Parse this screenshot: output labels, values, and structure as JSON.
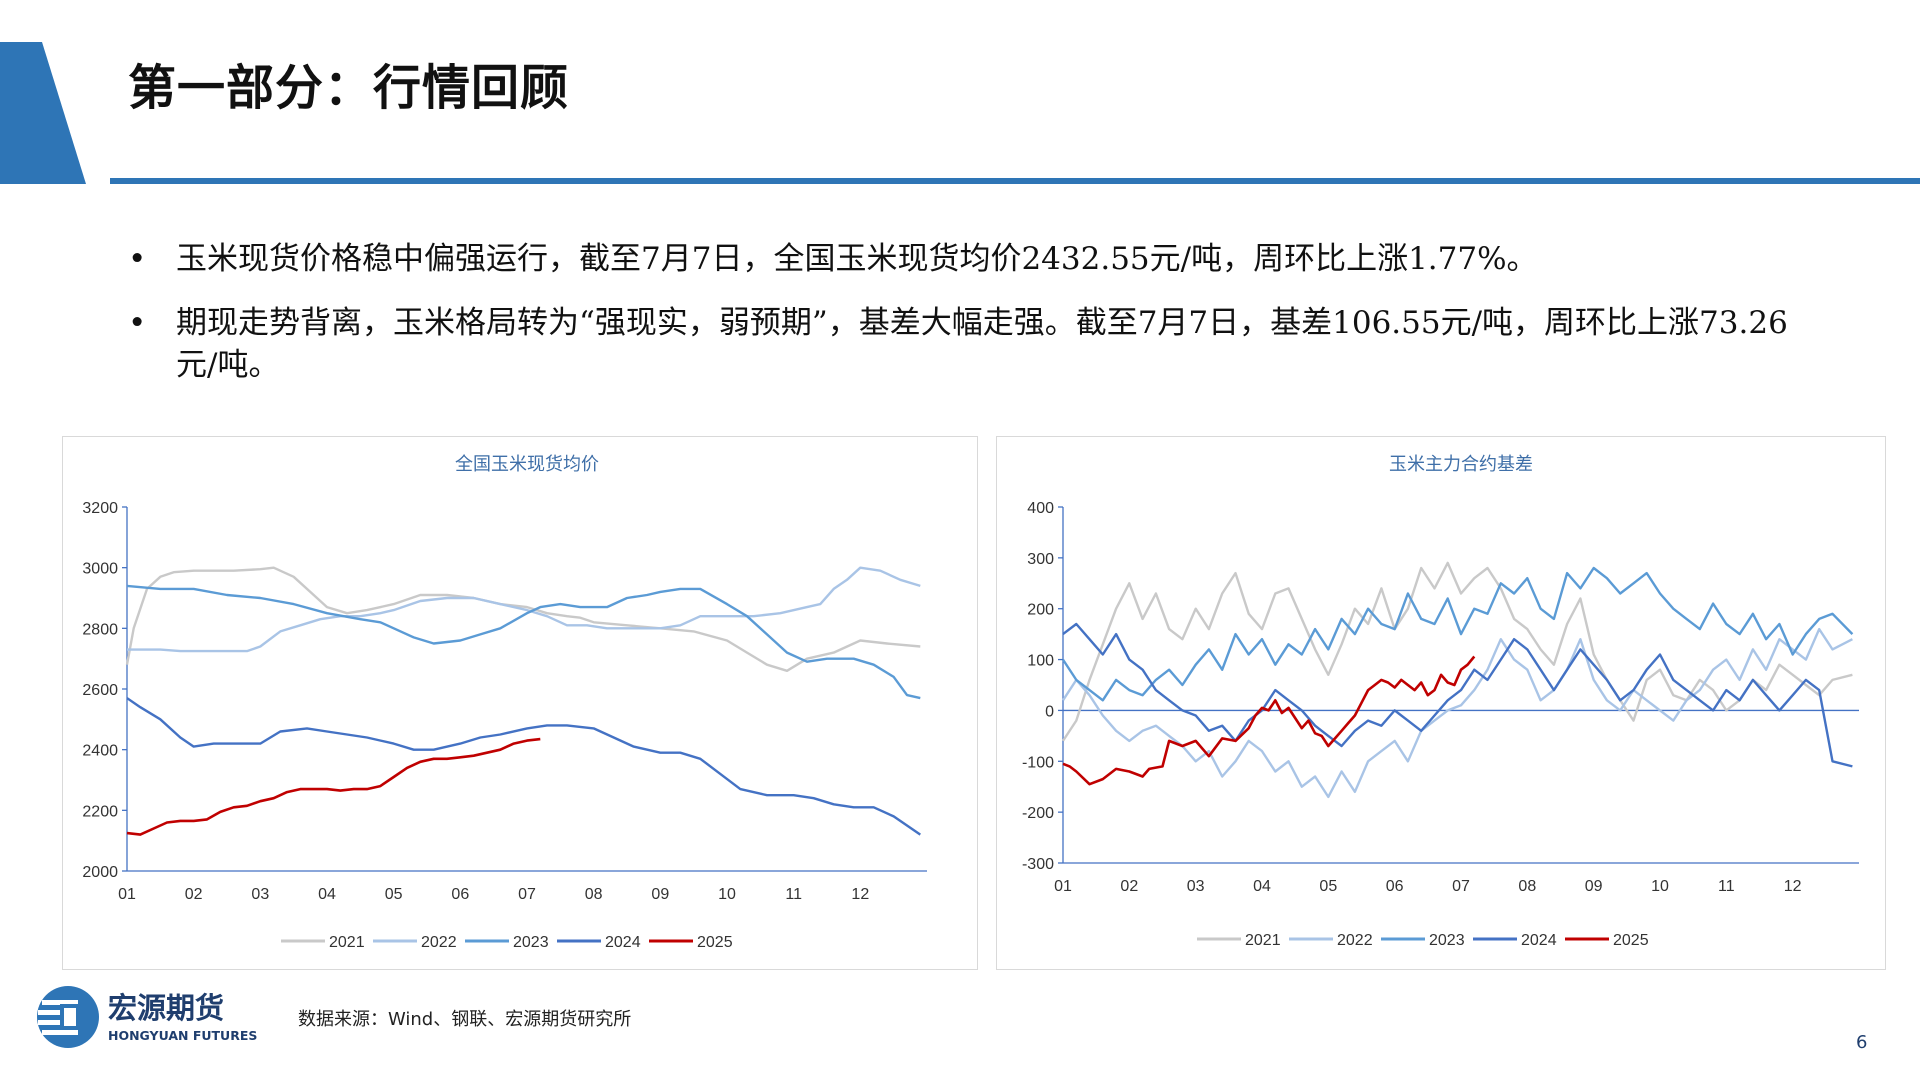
{
  "page": {
    "title": "第一部分：行情回顾",
    "page_number": "6",
    "source": "数据来源：Wind、钢联、宏源期货研究所"
  },
  "logo": {
    "name_cn": "宏源期货",
    "name_en": "HONGYUAN FUTURES"
  },
  "bullets": [
    "玉米现货价格稳中偏强运行，截至7月7日，全国玉米现货均价2432.55元/吨，周环比上涨1.77%。",
    "期现走势背离，玉米格局转为“强现实，弱预期”，基差大幅走强。截至7月7日，基差106.55元/吨，周环比上涨73.26元/吨。"
  ],
  "colors": {
    "accent": "#2e75b6",
    "s2021": "#c9c9c9",
    "s2022": "#a9c4e6",
    "s2023": "#5b9bd5",
    "s2024": "#4472c4",
    "s2025": "#c00000"
  },
  "chart_data": [
    {
      "type": "line",
      "title": "全国玉米现货均价",
      "x_ticks": [
        "01",
        "02",
        "03",
        "04",
        "05",
        "06",
        "07",
        "08",
        "09",
        "10",
        "11",
        "12"
      ],
      "ylim": [
        2000,
        3200
      ],
      "y_ticks": [
        2000,
        2200,
        2400,
        2600,
        2800,
        3000,
        3200
      ],
      "legend": "bottom",
      "series": [
        {
          "name": "2021",
          "x": [
            1.0,
            1.1,
            1.3,
            1.5,
            1.7,
            2.0,
            2.3,
            2.6,
            3.0,
            3.2,
            3.5,
            3.8,
            4.0,
            4.3,
            4.6,
            5.0,
            5.4,
            5.8,
            6.2,
            6.6,
            7.0,
            7.3,
            7.6,
            7.8,
            8.0,
            8.5,
            9.0,
            9.5,
            10.0,
            10.3,
            10.6,
            10.9,
            11.2,
            11.6,
            12.0,
            12.4,
            12.9
          ],
          "values": [
            2680,
            2800,
            2930,
            2970,
            2985,
            2990,
            2990,
            2990,
            2995,
            3000,
            2970,
            2910,
            2870,
            2850,
            2860,
            2880,
            2910,
            2910,
            2900,
            2880,
            2870,
            2850,
            2840,
            2835,
            2820,
            2810,
            2800,
            2790,
            2760,
            2720,
            2680,
            2660,
            2700,
            2720,
            2760,
            2750,
            2740
          ]
        },
        {
          "name": "2022",
          "x": [
            1.0,
            1.2,
            1.5,
            1.8,
            2.0,
            2.4,
            2.8,
            3.0,
            3.3,
            3.6,
            3.9,
            4.2,
            4.5,
            4.8,
            5.0,
            5.4,
            5.8,
            6.2,
            6.6,
            7.0,
            7.3,
            7.6,
            7.9,
            8.2,
            8.6,
            9.0,
            9.3,
            9.6,
            10.0,
            10.4,
            10.8,
            11.2,
            11.4,
            11.6,
            11.8,
            12.0,
            12.3,
            12.6,
            12.9
          ],
          "values": [
            2730,
            2730,
            2730,
            2725,
            2725,
            2725,
            2725,
            2740,
            2790,
            2810,
            2830,
            2840,
            2840,
            2850,
            2860,
            2890,
            2900,
            2900,
            2880,
            2860,
            2840,
            2810,
            2810,
            2800,
            2800,
            2800,
            2810,
            2840,
            2840,
            2840,
            2850,
            2870,
            2880,
            2930,
            2960,
            3000,
            2990,
            2960,
            2940
          ]
        },
        {
          "name": "2023",
          "x": [
            1.0,
            1.5,
            2.0,
            2.5,
            3.0,
            3.5,
            4.0,
            4.5,
            4.8,
            5.0,
            5.3,
            5.6,
            6.0,
            6.3,
            6.6,
            7.0,
            7.2,
            7.5,
            7.8,
            8.2,
            8.5,
            8.8,
            9.0,
            9.3,
            9.6,
            10.0,
            10.3,
            10.6,
            10.9,
            11.2,
            11.5,
            11.9,
            12.2,
            12.5,
            12.7,
            12.9
          ],
          "values": [
            2940,
            2930,
            2930,
            2910,
            2900,
            2880,
            2850,
            2830,
            2820,
            2800,
            2770,
            2750,
            2760,
            2780,
            2800,
            2850,
            2870,
            2880,
            2870,
            2870,
            2900,
            2910,
            2920,
            2930,
            2930,
            2880,
            2840,
            2780,
            2720,
            2690,
            2700,
            2700,
            2680,
            2640,
            2580,
            2570
          ]
        },
        {
          "name": "2024",
          "x": [
            1.0,
            1.2,
            1.5,
            1.8,
            2.0,
            2.3,
            2.7,
            3.0,
            3.3,
            3.7,
            4.0,
            4.3,
            4.6,
            5.0,
            5.3,
            5.6,
            6.0,
            6.3,
            6.6,
            7.0,
            7.3,
            7.6,
            8.0,
            8.3,
            8.6,
            9.0,
            9.3,
            9.6,
            9.9,
            10.2,
            10.6,
            11.0,
            11.3,
            11.6,
            11.9,
            12.2,
            12.5,
            12.9
          ],
          "values": [
            2570,
            2540,
            2500,
            2440,
            2410,
            2420,
            2420,
            2420,
            2460,
            2470,
            2460,
            2450,
            2440,
            2420,
            2400,
            2400,
            2420,
            2440,
            2450,
            2470,
            2480,
            2480,
            2470,
            2440,
            2410,
            2390,
            2390,
            2370,
            2320,
            2270,
            2250,
            2250,
            2240,
            2220,
            2210,
            2210,
            2180,
            2120
          ]
        },
        {
          "name": "2025",
          "x": [
            1.0,
            1.2,
            1.4,
            1.6,
            1.8,
            2.0,
            2.2,
            2.4,
            2.6,
            2.8,
            3.0,
            3.2,
            3.4,
            3.6,
            3.8,
            4.0,
            4.2,
            4.4,
            4.6,
            4.8,
            5.0,
            5.2,
            5.4,
            5.6,
            5.8,
            6.0,
            6.2,
            6.4,
            6.6,
            6.8,
            7.0,
            7.2
          ],
          "values": [
            2125,
            2120,
            2140,
            2160,
            2165,
            2165,
            2170,
            2195,
            2210,
            2215,
            2230,
            2240,
            2260,
            2270,
            2270,
            2270,
            2265,
            2270,
            2270,
            2280,
            2310,
            2340,
            2360,
            2370,
            2370,
            2375,
            2380,
            2390,
            2400,
            2420,
            2430,
            2435
          ]
        }
      ]
    },
    {
      "type": "line",
      "title": "玉米主力合约基差",
      "x_ticks": [
        "01",
        "02",
        "03",
        "04",
        "05",
        "06",
        "07",
        "08",
        "09",
        "10",
        "11",
        "12"
      ],
      "ylim": [
        -300,
        400
      ],
      "y_ticks": [
        -300,
        -200,
        -100,
        0,
        100,
        200,
        300,
        400
      ],
      "legend": "bottom",
      "series": [
        {
          "name": "2021",
          "x": [
            1.0,
            1.2,
            1.4,
            1.6,
            1.8,
            2.0,
            2.2,
            2.4,
            2.6,
            2.8,
            3.0,
            3.2,
            3.4,
            3.6,
            3.8,
            4.0,
            4.2,
            4.4,
            4.6,
            4.8,
            5.0,
            5.2,
            5.4,
            5.6,
            5.8,
            6.0,
            6.2,
            6.4,
            6.6,
            6.8,
            7.0,
            7.2,
            7.4,
            7.6,
            7.8,
            8.0,
            8.2,
            8.4,
            8.6,
            8.8,
            9.0,
            9.2,
            9.4,
            9.6,
            9.8,
            10.0,
            10.2,
            10.4,
            10.6,
            10.8,
            11.0,
            11.2,
            11.4,
            11.6,
            11.8,
            12.0,
            12.2,
            12.4,
            12.6,
            12.9
          ],
          "values": [
            -60,
            -20,
            60,
            130,
            200,
            250,
            180,
            230,
            160,
            140,
            200,
            160,
            230,
            270,
            190,
            160,
            230,
            240,
            180,
            120,
            70,
            130,
            200,
            170,
            240,
            160,
            200,
            280,
            240,
            290,
            230,
            260,
            280,
            240,
            180,
            160,
            120,
            90,
            170,
            220,
            110,
            60,
            20,
            -20,
            60,
            80,
            30,
            20,
            60,
            40,
            0,
            20,
            60,
            40,
            90,
            70,
            50,
            30,
            60,
            70
          ]
        },
        {
          "name": "2022",
          "x": [
            1.0,
            1.2,
            1.4,
            1.6,
            1.8,
            2.0,
            2.2,
            2.4,
            2.6,
            2.8,
            3.0,
            3.2,
            3.4,
            3.6,
            3.8,
            4.0,
            4.2,
            4.4,
            4.6,
            4.8,
            5.0,
            5.2,
            5.4,
            5.6,
            5.8,
            6.0,
            6.2,
            6.4,
            6.6,
            6.8,
            7.0,
            7.2,
            7.4,
            7.6,
            7.8,
            8.0,
            8.2,
            8.4,
            8.6,
            8.8,
            9.0,
            9.2,
            9.4,
            9.6,
            9.8,
            10.0,
            10.2,
            10.4,
            10.6,
            10.8,
            11.0,
            11.2,
            11.4,
            11.6,
            11.8,
            12.0,
            12.2,
            12.4,
            12.6,
            12.9
          ],
          "values": [
            20,
            60,
            30,
            -10,
            -40,
            -60,
            -40,
            -30,
            -50,
            -70,
            -100,
            -80,
            -130,
            -100,
            -60,
            -80,
            -120,
            -100,
            -150,
            -130,
            -170,
            -120,
            -160,
            -100,
            -80,
            -60,
            -100,
            -40,
            -20,
            0,
            10,
            40,
            80,
            140,
            100,
            80,
            20,
            40,
            80,
            140,
            60,
            20,
            0,
            40,
            20,
            0,
            -20,
            20,
            40,
            80,
            100,
            60,
            120,
            80,
            140,
            120,
            100,
            160,
            120,
            140
          ]
        },
        {
          "name": "2023",
          "x": [
            1.0,
            1.2,
            1.4,
            1.6,
            1.8,
            2.0,
            2.2,
            2.4,
            2.6,
            2.8,
            3.0,
            3.2,
            3.4,
            3.6,
            3.8,
            4.0,
            4.2,
            4.4,
            4.6,
            4.8,
            5.0,
            5.2,
            5.4,
            5.6,
            5.8,
            6.0,
            6.2,
            6.4,
            6.6,
            6.8,
            7.0,
            7.2,
            7.4,
            7.6,
            7.8,
            8.0,
            8.2,
            8.4,
            8.6,
            8.8,
            9.0,
            9.2,
            9.4,
            9.6,
            9.8,
            10.0,
            10.2,
            10.4,
            10.6,
            10.8,
            11.0,
            11.2,
            11.4,
            11.6,
            11.8,
            12.0,
            12.2,
            12.4,
            12.6,
            12.9
          ],
          "values": [
            100,
            60,
            40,
            20,
            60,
            40,
            30,
            60,
            80,
            50,
            90,
            120,
            80,
            150,
            110,
            140,
            90,
            130,
            110,
            160,
            120,
            180,
            150,
            200,
            170,
            160,
            230,
            180,
            170,
            220,
            150,
            200,
            190,
            250,
            230,
            260,
            200,
            180,
            270,
            240,
            280,
            260,
            230,
            250,
            270,
            230,
            200,
            180,
            160,
            210,
            170,
            150,
            190,
            140,
            170,
            110,
            150,
            180,
            190,
            150
          ]
        },
        {
          "name": "2024",
          "x": [
            1.0,
            1.2,
            1.4,
            1.6,
            1.8,
            2.0,
            2.2,
            2.4,
            2.6,
            2.8,
            3.0,
            3.2,
            3.4,
            3.6,
            3.8,
            4.0,
            4.2,
            4.4,
            4.6,
            4.8,
            5.0,
            5.2,
            5.4,
            5.6,
            5.8,
            6.0,
            6.2,
            6.4,
            6.6,
            6.8,
            7.0,
            7.2,
            7.4,
            7.6,
            7.8,
            8.0,
            8.2,
            8.4,
            8.6,
            8.8,
            9.0,
            9.2,
            9.4,
            9.6,
            9.8,
            10.0,
            10.2,
            10.4,
            10.6,
            10.8,
            11.0,
            11.2,
            11.4,
            11.6,
            11.8,
            12.0,
            12.2,
            12.4,
            12.6,
            12.9
          ],
          "values": [
            150,
            170,
            140,
            110,
            150,
            100,
            80,
            40,
            20,
            0,
            -10,
            -40,
            -30,
            -60,
            -20,
            0,
            40,
            20,
            0,
            -30,
            -50,
            -70,
            -40,
            -20,
            -30,
            0,
            -20,
            -40,
            -10,
            20,
            40,
            80,
            60,
            100,
            140,
            120,
            80,
            40,
            80,
            120,
            90,
            60,
            20,
            40,
            80,
            110,
            60,
            40,
            20,
            0,
            40,
            20,
            60,
            30,
            0,
            30,
            60,
            40,
            -100,
            -110
          ]
        },
        {
          "name": "2025",
          "x": [
            1.0,
            1.1,
            1.2,
            1.4,
            1.6,
            1.8,
            2.0,
            2.1,
            2.2,
            2.3,
            2.5,
            2.6,
            2.8,
            3.0,
            3.2,
            3.4,
            3.6,
            3.8,
            3.9,
            4.0,
            4.1,
            4.2,
            4.3,
            4.4,
            4.5,
            4.6,
            4.7,
            4.8,
            4.9,
            5.0,
            5.1,
            5.2,
            5.3,
            5.4,
            5.5,
            5.6,
            5.7,
            5.8,
            5.9,
            6.0,
            6.1,
            6.2,
            6.3,
            6.4,
            6.5,
            6.6,
            6.7,
            6.8,
            6.9,
            7.0,
            7.1,
            7.2
          ],
          "values": [
            -105,
            -110,
            -120,
            -145,
            -135,
            -115,
            -120,
            -125,
            -130,
            -115,
            -110,
            -60,
            -70,
            -60,
            -90,
            -55,
            -60,
            -35,
            -10,
            5,
            0,
            20,
            -5,
            5,
            -15,
            -35,
            -20,
            -45,
            -50,
            -70,
            -55,
            -40,
            -25,
            -10,
            15,
            40,
            50,
            60,
            55,
            45,
            60,
            50,
            40,
            55,
            30,
            40,
            70,
            55,
            50,
            80,
            90,
            106
          ]
        }
      ]
    }
  ]
}
